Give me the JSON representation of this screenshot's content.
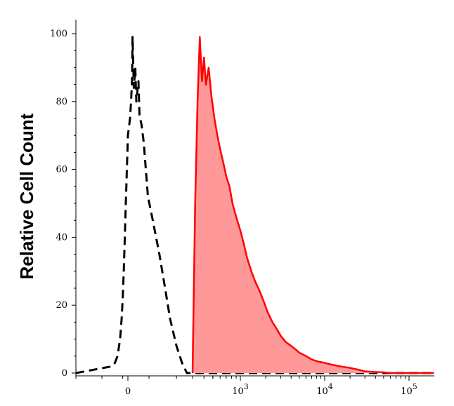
{
  "chart_data": {
    "type": "area",
    "title": "",
    "xlabel": "",
    "ylabel": "Relative Cell Count",
    "x_scale": "biexponential",
    "xlim": [
      -1000,
      200000
    ],
    "ylim": [
      0,
      100
    ],
    "y_ticks": [
      {
        "value": 0,
        "label": "0"
      },
      {
        "value": 20,
        "label": "20"
      },
      {
        "value": 40,
        "label": "40"
      },
      {
        "value": 60,
        "label": "60"
      },
      {
        "value": 80,
        "label": "80"
      },
      {
        "value": 100,
        "label": "100"
      }
    ],
    "x_ticks": [
      {
        "value": 0,
        "base": "0",
        "exp": ""
      },
      {
        "value": 1000,
        "base": "10",
        "exp": "3"
      },
      {
        "value": 10000,
        "base": "10",
        "exp": "4"
      },
      {
        "value": 100000,
        "base": "10",
        "exp": "5"
      }
    ],
    "grid": false,
    "legend": "none",
    "series": [
      {
        "style": "dashed",
        "color": "#000000",
        "fill": "none",
        "points": [
          [
            -1000,
            0
          ],
          [
            -300,
            2
          ],
          [
            -250,
            3
          ],
          [
            -200,
            5
          ],
          [
            -150,
            10
          ],
          [
            -120,
            16
          ],
          [
            -100,
            22
          ],
          [
            -80,
            30
          ],
          [
            -60,
            40
          ],
          [
            -40,
            50
          ],
          [
            -30,
            55
          ],
          [
            -20,
            60
          ],
          [
            -10,
            65
          ],
          [
            0,
            70
          ],
          [
            10,
            75
          ],
          [
            15,
            80
          ],
          [
            20,
            87
          ],
          [
            22,
            99
          ],
          [
            28,
            84
          ],
          [
            35,
            90
          ],
          [
            40,
            80
          ],
          [
            50,
            86
          ],
          [
            55,
            76
          ],
          [
            65,
            73
          ],
          [
            75,
            68
          ],
          [
            85,
            60
          ],
          [
            95,
            52
          ],
          [
            110,
            45
          ],
          [
            130,
            35
          ],
          [
            150,
            25
          ],
          [
            170,
            16
          ],
          [
            200,
            8
          ],
          [
            230,
            3
          ],
          [
            260,
            0
          ],
          [
            20000,
            0
          ],
          [
            200000,
            0
          ]
        ]
      },
      {
        "style": "solid",
        "color": "#ff0000",
        "fill": "#ff9999",
        "points": [
          [
            300,
            0
          ],
          [
            320,
            50
          ],
          [
            340,
            80
          ],
          [
            360,
            99
          ],
          [
            380,
            86
          ],
          [
            400,
            93
          ],
          [
            420,
            85
          ],
          [
            450,
            90
          ],
          [
            480,
            82
          ],
          [
            520,
            75
          ],
          [
            560,
            70
          ],
          [
            600,
            66
          ],
          [
            650,
            62
          ],
          [
            700,
            58
          ],
          [
            760,
            55
          ],
          [
            820,
            50
          ],
          [
            900,
            46
          ],
          [
            1000,
            42
          ],
          [
            1100,
            38
          ],
          [
            1200,
            34
          ],
          [
            1350,
            30
          ],
          [
            1500,
            27
          ],
          [
            1700,
            24
          ],
          [
            1900,
            21
          ],
          [
            2100,
            18
          ],
          [
            2400,
            15
          ],
          [
            2700,
            13
          ],
          [
            3000,
            11
          ],
          [
            3500,
            9
          ],
          [
            4000,
            8
          ],
          [
            4500,
            7
          ],
          [
            5000,
            6
          ],
          [
            6000,
            5
          ],
          [
            7000,
            4
          ],
          [
            8000,
            3.5
          ],
          [
            10000,
            3
          ],
          [
            12000,
            2.5
          ],
          [
            15000,
            2
          ],
          [
            20000,
            1.5
          ],
          [
            25000,
            1
          ],
          [
            30000,
            0.5
          ],
          [
            40000,
            0.3
          ],
          [
            50000,
            0.2
          ],
          [
            60000,
            0
          ],
          [
            200000,
            0
          ]
        ]
      }
    ]
  }
}
